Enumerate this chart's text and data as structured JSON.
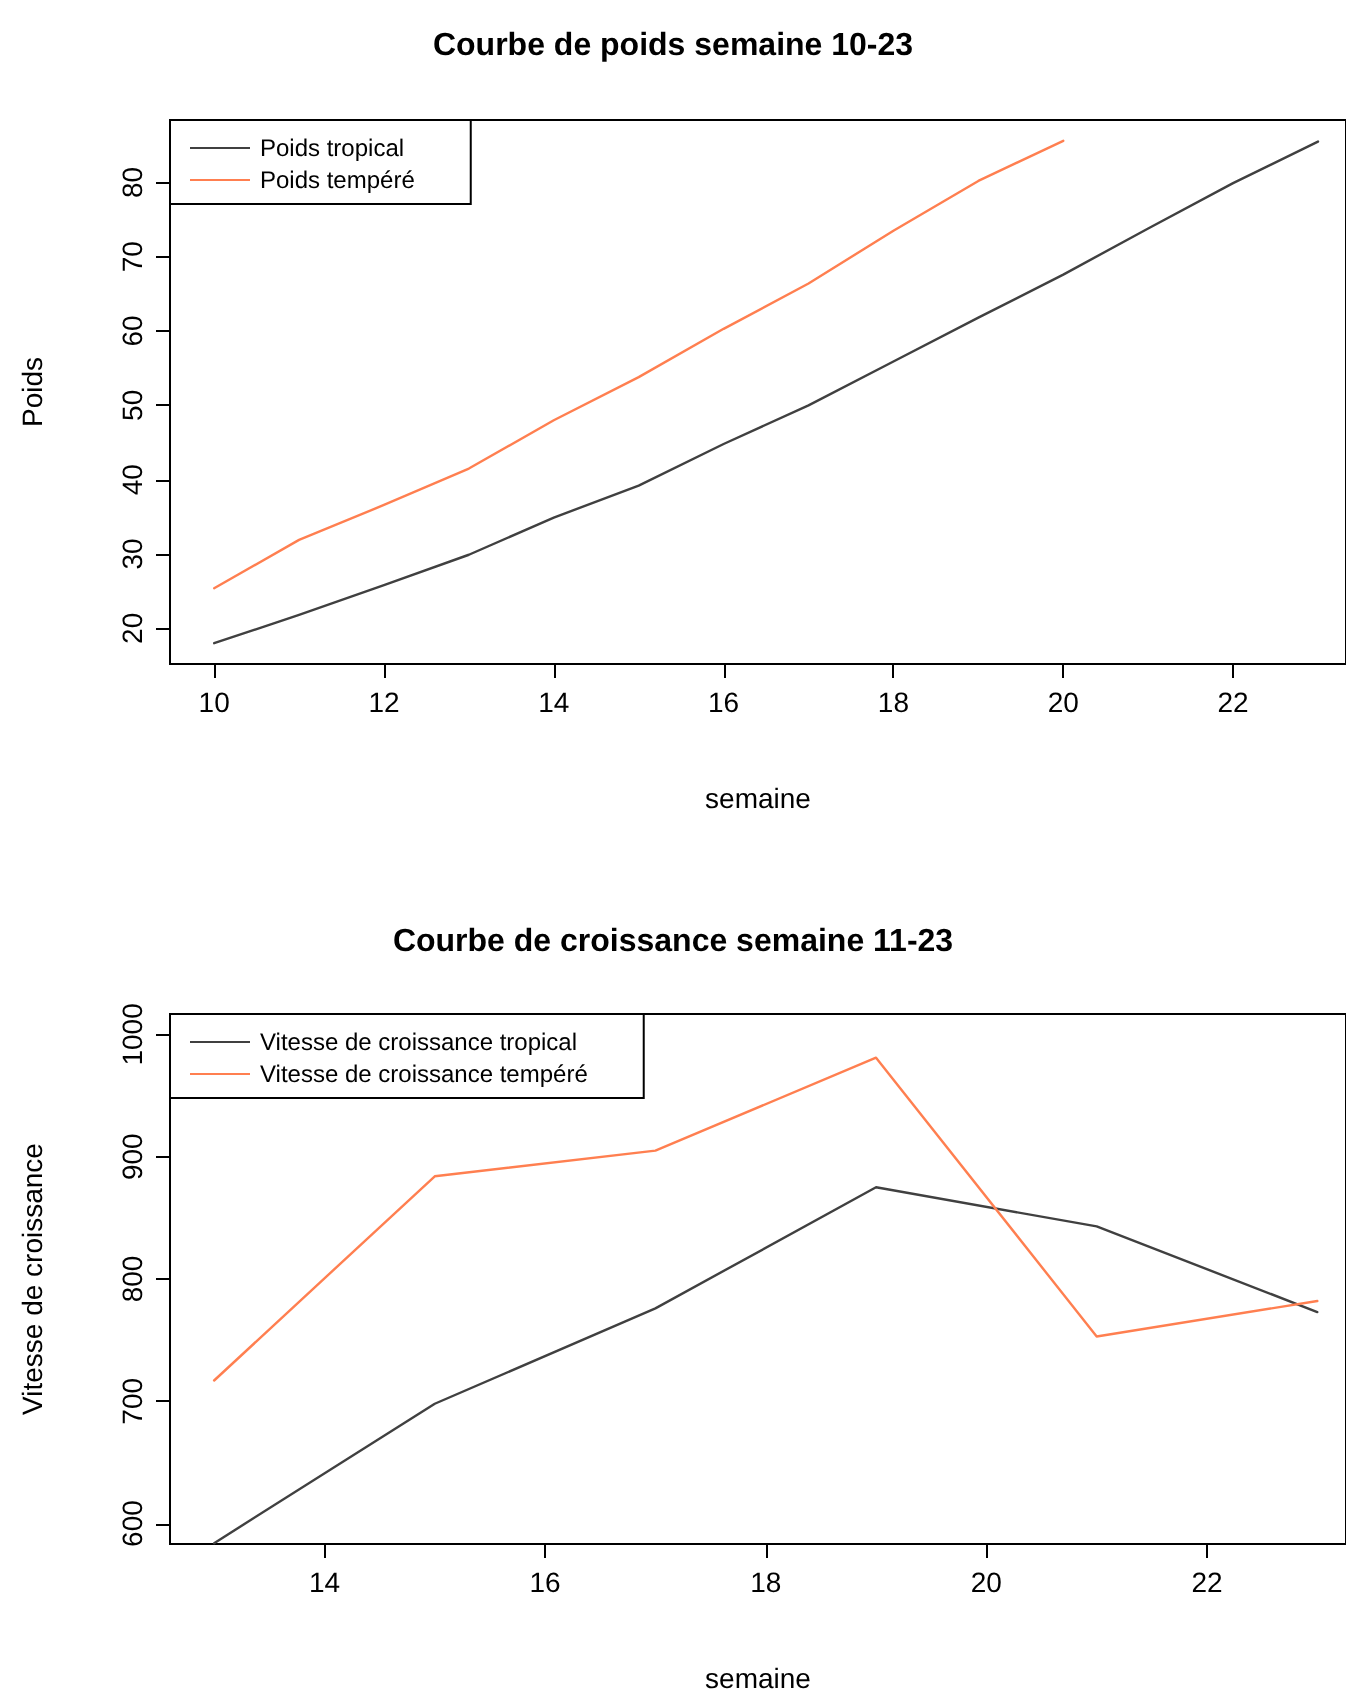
{
  "chart_data": [
    {
      "type": "line",
      "title": "Courbe de poids semaine 10-23",
      "xlabel": "semaine",
      "ylabel": "Poids",
      "series": [
        {
          "name": "Poids tropical",
          "color": "#404040",
          "x": [
            10,
            11,
            12,
            13,
            14,
            15,
            16,
            17,
            18,
            19,
            20,
            21,
            22,
            23
          ],
          "values": [
            18,
            21.8,
            25.8,
            29.9,
            34.9,
            39.2,
            44.8,
            50,
            55.9,
            61.8,
            67.6,
            73.8,
            79.9,
            85.5
          ]
        },
        {
          "name": "Poids tempéré",
          "color": "#ff7f50",
          "x": [
            10,
            11,
            12,
            13,
            14,
            15,
            16,
            17,
            18,
            19,
            20
          ],
          "values": [
            25.4,
            31.9,
            36.6,
            41.5,
            48,
            53.8,
            60.3,
            66.4,
            73.5,
            80.2,
            85.6
          ]
        }
      ],
      "xlim": [
        9.48,
        23.33
      ],
      "ylim": [
        15.2,
        88.4
      ],
      "xticks": [
        10,
        12,
        14,
        16,
        18,
        20,
        22
      ],
      "yticks": [
        20,
        30,
        40,
        50,
        60,
        70,
        80
      ],
      "grid": false,
      "legend": "top left",
      "marker": "none",
      "line_style": "solid"
    },
    {
      "type": "line",
      "title": "Courbe de croissance semaine 11-23",
      "xlabel": "semaine",
      "ylabel": "Vitesse de croissance",
      "series": [
        {
          "name": "Vitesse de croissance tropical",
          "color": "#404040",
          "x": [
            13,
            15,
            17,
            19,
            21,
            23
          ],
          "values": [
            584,
            698,
            776,
            875,
            843,
            773
          ]
        },
        {
          "name": "Vitesse de croissance tempéré",
          "color": "#ff7f50",
          "x": [
            13,
            15,
            17,
            19,
            21,
            23
          ],
          "values": [
            717,
            884,
            905,
            981,
            753,
            782
          ]
        }
      ],
      "xlim": [
        12.6,
        23.26
      ],
      "ylim": [
        583.3,
        1016.7
      ],
      "xticks": [
        14,
        16,
        18,
        20,
        22
      ],
      "yticks": [
        600,
        700,
        800,
        900,
        1000
      ],
      "grid": false,
      "legend": "top left",
      "marker": "none",
      "line_style": "solid"
    }
  ]
}
